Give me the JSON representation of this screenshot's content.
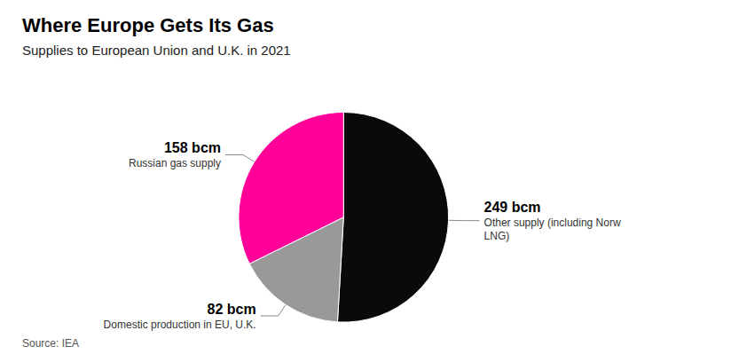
{
  "chart_data": {
    "type": "pie",
    "title": "Where Europe Gets Its Gas",
    "subtitle": "Supplies to European Union and U.K. in 2021",
    "annotations": [
      "Source: IEA"
    ],
    "categories": [
      "Other supply (including Norw\nLNG)",
      "Domestic production in EU, U.K.",
      "Russian gas supply"
    ],
    "values": [
      249,
      82,
      158
    ],
    "value_labels": [
      "249 bcm",
      "82 bcm",
      "158 bcm"
    ],
    "colors": [
      "#0a0a0a",
      "#999999",
      "#ff0099"
    ],
    "data_labels": true,
    "legend": false
  }
}
